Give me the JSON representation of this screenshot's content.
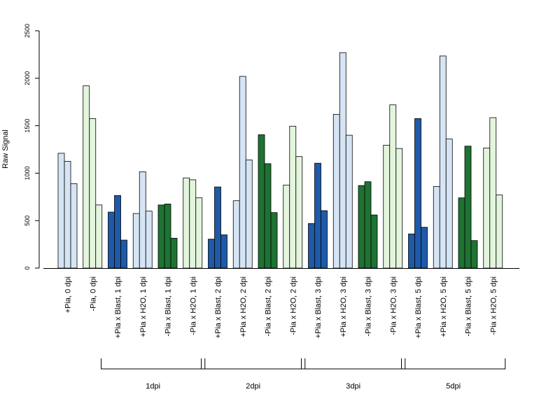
{
  "chart_data": {
    "type": "bar",
    "ylabel": "Raw Signal",
    "xlabel": "",
    "ylim": [
      0,
      2500
    ],
    "yticks": [
      "0",
      "500",
      "1000",
      "1500",
      "2000",
      "2500"
    ],
    "grid": false,
    "legend": "none",
    "bars_per_category": 3,
    "colors": {
      "light_blue": "#d6e5f5",
      "light_green": "#e3f5dc",
      "dark_blue": "#1e5aa8",
      "dark_green": "#1e7332",
      "stroke": "#000000"
    },
    "categories": [
      {
        "label": "+Pia, 0 dpi",
        "color": "light_blue",
        "values": [
          1210,
          1125,
          890
        ]
      },
      {
        "label": "-Pia, 0 dpi",
        "color": "light_green",
        "values": [
          1920,
          1575,
          665
        ]
      },
      {
        "label": "+Pia x Blast, 1 dpi",
        "color": "dark_blue",
        "values": [
          590,
          765,
          295
        ]
      },
      {
        "label": "+Pia x H2O, 1 dpi",
        "color": "light_blue",
        "values": [
          575,
          1015,
          600
        ]
      },
      {
        "label": "-Pia x Blast, 1 dpi",
        "color": "dark_green",
        "values": [
          665,
          675,
          315
        ]
      },
      {
        "label": "-Pia x H2O, 1 dpi",
        "color": "light_green",
        "values": [
          950,
          930,
          740
        ]
      },
      {
        "label": "+Pia x Blast, 2 dpi",
        "color": "dark_blue",
        "values": [
          305,
          855,
          350
        ]
      },
      {
        "label": "+Pia x H2O, 2 dpi",
        "color": "light_blue",
        "values": [
          710,
          2020,
          1140
        ]
      },
      {
        "label": "-Pia x Blast, 2 dpi",
        "color": "dark_green",
        "values": [
          1405,
          1100,
          585
        ]
      },
      {
        "label": "-Pia x H2O, 2 dpi",
        "color": "light_green",
        "values": [
          875,
          1495,
          1175
        ]
      },
      {
        "label": "+Pia x Blast, 3 dpi",
        "color": "dark_blue",
        "values": [
          470,
          1105,
          605
        ]
      },
      {
        "label": "+Pia x H2O, 3 dpi",
        "color": "light_blue",
        "values": [
          1620,
          2270,
          1400
        ]
      },
      {
        "label": "-Pia x Blast, 3 dpi",
        "color": "dark_green",
        "values": [
          870,
          910,
          560
        ]
      },
      {
        "label": "-Pia x H2O, 3 dpi",
        "color": "light_green",
        "values": [
          1295,
          1720,
          1260
        ]
      },
      {
        "label": "+Pia x Blast, 5 dpi",
        "color": "dark_blue",
        "values": [
          360,
          1575,
          430
        ]
      },
      {
        "label": "+Pia x H2O, 5 dpi",
        "color": "light_blue",
        "values": [
          860,
          2235,
          1360
        ]
      },
      {
        "label": "-Pia x Blast, 5 dpi",
        "color": "dark_green",
        "values": [
          740,
          1285,
          290
        ]
      },
      {
        "label": "-Pia x H2O, 5 dpi",
        "color": "light_green",
        "values": [
          1265,
          1585,
          770
        ]
      }
    ],
    "groups": [
      {
        "label": "1dpi",
        "from": 2,
        "to": 5
      },
      {
        "label": "2dpi",
        "from": 6,
        "to": 9
      },
      {
        "label": "3dpi",
        "from": 10,
        "to": 13
      },
      {
        "label": "5dpi",
        "from": 14,
        "to": 17
      }
    ]
  }
}
